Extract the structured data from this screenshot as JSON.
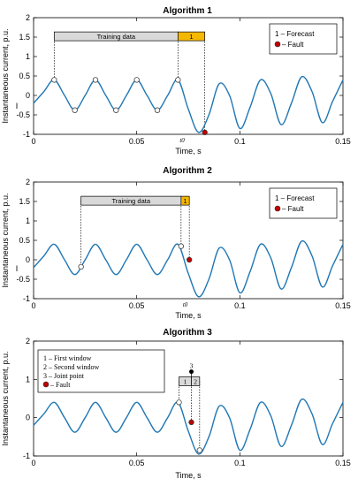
{
  "chart_data": [
    {
      "type": "line",
      "title": "Algorithm 1",
      "xlabel": "Time, s",
      "ylabel": "Instantaneous current, p.u.",
      "xlim": [
        0,
        0.15
      ],
      "ylim": [
        -1,
        2
      ],
      "xticks": [
        "0",
        "0.05",
        "0.1",
        "0.15"
      ],
      "yticks": [
        "-1",
        "-0.5",
        "0",
        "0.5",
        "1",
        "1.5",
        "2"
      ],
      "y_axis_marker": "I",
      "series": [
        {
          "x": [
            0,
            0.005,
            0.01,
            0.015,
            0.02,
            0.025,
            0.03,
            0.035,
            0.04,
            0.045,
            0.05,
            0.055,
            0.06,
            0.065,
            0.07,
            0.075,
            0.08,
            0.085,
            0.09,
            0.095,
            0.1,
            0.105,
            0.11,
            0.115,
            0.12,
            0.125,
            0.13,
            0.135,
            0.14,
            0.145,
            0.15
          ],
          "y": [
            -0.2,
            0.1,
            0.4,
            0.0,
            -0.38,
            0.0,
            0.4,
            0.0,
            -0.38,
            0.0,
            0.4,
            0.0,
            -0.38,
            0.0,
            0.4,
            -0.35,
            -0.95,
            -0.5,
            0.3,
            0.0,
            -0.85,
            -0.3,
            0.4,
            0.05,
            -0.75,
            -0.2,
            0.48,
            0.1,
            -0.7,
            -0.15,
            0.4
          ]
        }
      ],
      "markers": [
        {
          "kind": "sample",
          "x": 0.01,
          "y": 0.4
        },
        {
          "kind": "sample",
          "x": 0.02,
          "y": -0.38
        },
        {
          "kind": "sample",
          "x": 0.03,
          "y": 0.4
        },
        {
          "kind": "sample",
          "x": 0.04,
          "y": -0.38
        },
        {
          "kind": "sample",
          "x": 0.05,
          "y": 0.4
        },
        {
          "kind": "sample",
          "x": 0.06,
          "y": -0.38
        },
        {
          "kind": "sample",
          "x": 0.07,
          "y": 0.4
        },
        {
          "kind": "fault",
          "x": 0.083,
          "y": -0.95
        }
      ],
      "bars": [
        {
          "x0": 0.01,
          "x1": 0.07,
          "label": "Training data",
          "fill": "#d9d9d9"
        },
        {
          "x0": 0.07,
          "x1": 0.083,
          "label": "1",
          "fill": "#f5b800"
        }
      ],
      "bar_y": 1.52,
      "vlines": [
        0.01,
        0.07,
        0.083
      ],
      "t0": {
        "x": 0.07,
        "label": "t0"
      },
      "legend": {
        "position": "top-right",
        "items": [
          "1 – Forecast",
          "– Fault"
        ]
      }
    },
    {
      "type": "line",
      "title": "Algorithm 2",
      "xlabel": "Time, s",
      "ylabel": "Instantaneous current, p.u.",
      "xlim": [
        0,
        0.15
      ],
      "ylim": [
        -1,
        2
      ],
      "xticks": [
        "0",
        "0.05",
        "0.1",
        "0.15"
      ],
      "yticks": [
        "-1",
        "-0.5",
        "0",
        "0.5",
        "1",
        "1.5",
        "2"
      ],
      "y_axis_marker": "I",
      "series": [
        {
          "x": [
            0,
            0.005,
            0.01,
            0.015,
            0.02,
            0.025,
            0.03,
            0.035,
            0.04,
            0.045,
            0.05,
            0.055,
            0.06,
            0.065,
            0.07,
            0.075,
            0.08,
            0.085,
            0.09,
            0.095,
            0.1,
            0.105,
            0.11,
            0.115,
            0.12,
            0.125,
            0.13,
            0.135,
            0.14,
            0.145,
            0.15
          ],
          "y": [
            -0.2,
            0.1,
            0.4,
            0.0,
            -0.38,
            0.0,
            0.4,
            0.0,
            -0.38,
            0.0,
            0.4,
            0.0,
            -0.38,
            0.0,
            0.4,
            -0.35,
            -0.95,
            -0.5,
            0.3,
            0.0,
            -0.85,
            -0.3,
            0.4,
            0.05,
            -0.75,
            -0.2,
            0.48,
            0.1,
            -0.7,
            -0.15,
            0.4
          ]
        }
      ],
      "markers": [
        {
          "kind": "sample",
          "x": 0.023,
          "y": -0.18
        },
        {
          "kind": "sample",
          "x": 0.0715,
          "y": 0.35
        },
        {
          "kind": "fault",
          "x": 0.0755,
          "y": 0.0
        }
      ],
      "bars": [
        {
          "x0": 0.023,
          "x1": 0.0715,
          "label": "Training data",
          "fill": "#d9d9d9"
        },
        {
          "x0": 0.0715,
          "x1": 0.0755,
          "label": "1",
          "fill": "#f5b800"
        }
      ],
      "bar_y": 1.52,
      "vlines": [
        0.023,
        0.0715,
        0.0755
      ],
      "t0": {
        "x": 0.0715,
        "label": "t0"
      },
      "legend": {
        "position": "top-right",
        "items": [
          "1 – Forecast",
          "– Fault"
        ]
      }
    },
    {
      "type": "line",
      "title": "Algorithm 3",
      "xlabel": "Time, s",
      "ylabel": "Instantaneous current, p.u.",
      "xlim": [
        0,
        0.15
      ],
      "ylim": [
        -1,
        2
      ],
      "xticks": [
        "0",
        "0.05",
        "0.1",
        "0.15"
      ],
      "yticks": [
        "-1",
        "0",
        "1",
        "2"
      ],
      "series": [
        {
          "x": [
            0,
            0.005,
            0.01,
            0.015,
            0.02,
            0.025,
            0.03,
            0.035,
            0.04,
            0.045,
            0.05,
            0.055,
            0.06,
            0.065,
            0.07,
            0.075,
            0.08,
            0.085,
            0.09,
            0.095,
            0.1,
            0.105,
            0.11,
            0.115,
            0.12,
            0.125,
            0.13,
            0.135,
            0.14,
            0.145,
            0.15
          ],
          "y": [
            -0.2,
            0.1,
            0.4,
            0.0,
            -0.38,
            0.0,
            0.4,
            0.0,
            -0.38,
            0.0,
            0.4,
            0.0,
            -0.38,
            0.0,
            0.4,
            -0.35,
            -0.95,
            -0.5,
            0.3,
            0.0,
            -0.85,
            -0.3,
            0.4,
            0.05,
            -0.75,
            -0.2,
            0.48,
            0.1,
            -0.7,
            -0.15,
            0.4
          ]
        }
      ],
      "markers": [
        {
          "kind": "sample",
          "x": 0.0705,
          "y": 0.4
        },
        {
          "kind": "fault",
          "x": 0.0765,
          "y": -0.12
        },
        {
          "kind": "sample",
          "x": 0.0805,
          "y": -0.85
        },
        {
          "kind": "joint",
          "x": 0.0765,
          "y": 1.2
        }
      ],
      "bars": [
        {
          "x0": 0.0705,
          "x1": 0.0765,
          "label": "1",
          "fill": "#d9d9d9"
        },
        {
          "x0": 0.0765,
          "x1": 0.0805,
          "label": "2",
          "fill": "#d9d9d9"
        }
      ],
      "bar_y": 0.95,
      "vlines": [
        0.0705,
        0.0765,
        0.0805
      ],
      "joint_label": "3",
      "legend": {
        "position": "top-left",
        "items": [
          "1 – First window",
          "2 – Second window",
          "3 – Joint point",
          "– Fault"
        ]
      }
    }
  ],
  "colors": {
    "line": "#1f77b4",
    "fault": "#c00000",
    "sample_edge": "#404040",
    "forecast_bar": "#f5b800",
    "training_bar": "#d9d9d9"
  }
}
